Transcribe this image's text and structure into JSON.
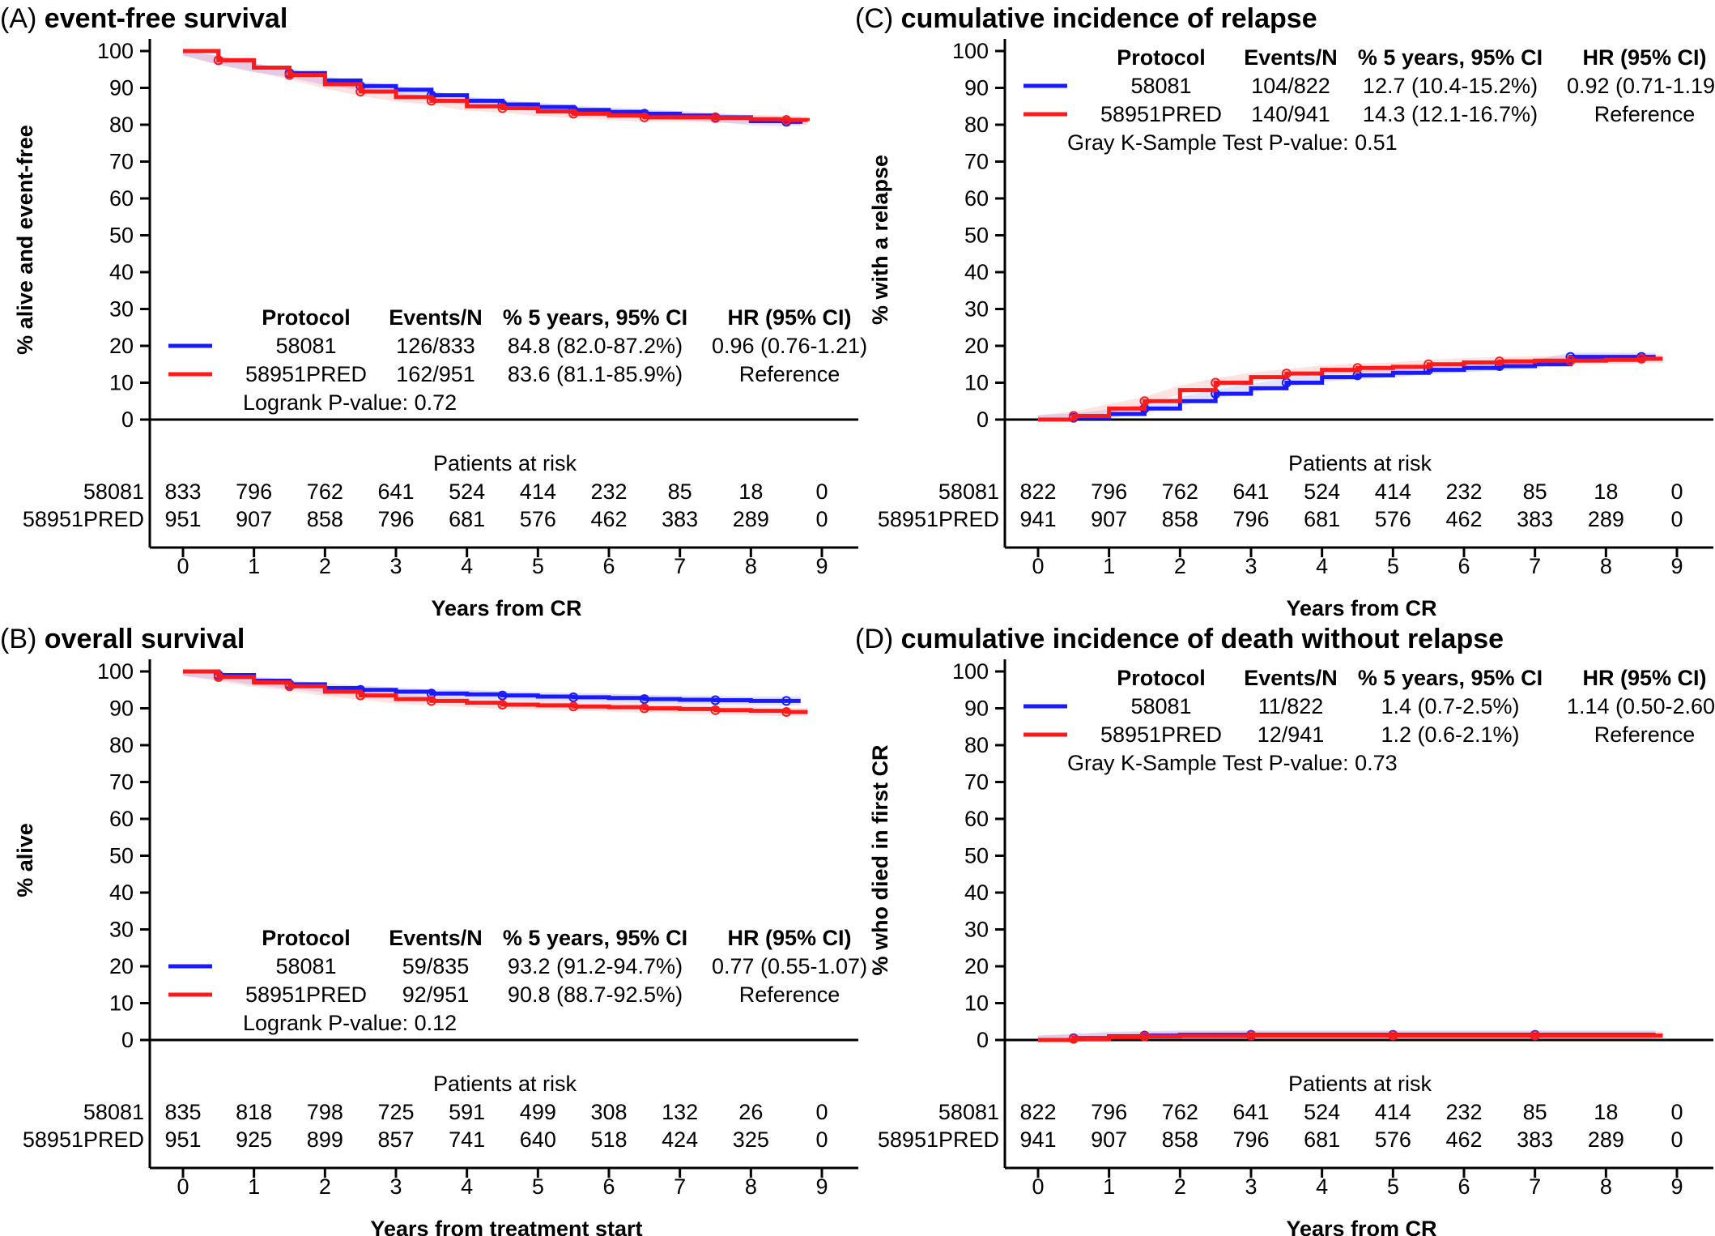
{
  "chart_data": [
    {
      "panel_letter": "(A)",
      "title": "event-free survival",
      "type": "line",
      "ylabel": "% alive and event-free",
      "xlabel": "Years from CR",
      "ylim": [
        0,
        100
      ],
      "xlim": [
        0,
        9
      ],
      "yticks": [
        0,
        10,
        20,
        30,
        40,
        50,
        60,
        70,
        80,
        90,
        100
      ],
      "xticks": [
        0,
        1,
        2,
        3,
        4,
        5,
        6,
        7,
        8,
        9
      ],
      "legend": {
        "headers": [
          "Protocol",
          "Events/N",
          "% 5 years, 95% CI",
          "HR (95% CI)"
        ],
        "placement": "bottom",
        "rows": [
          {
            "protocol": "58081",
            "events": "126/833",
            "pct": "84.8 (82.0-87.2%)",
            "hr": "0.96 (0.76-1.21)",
            "color": "#1a1aff"
          },
          {
            "protocol": "58951PRED",
            "events": "162/951",
            "pct": "83.6 (81.1-85.9%)",
            "hr": "Reference",
            "color": "#ff1a1a"
          }
        ],
        "test": "Logrank P-value: 0.72"
      },
      "series": [
        {
          "name": "58081",
          "color": "#1a1aff",
          "x": [
            0,
            0.5,
            1,
            1.5,
            2,
            2.5,
            3,
            3.5,
            4,
            4.5,
            5,
            5.5,
            6,
            6.5,
            7,
            7.5,
            8,
            8.5,
            8.7
          ],
          "y": [
            100,
            97.5,
            95.5,
            94,
            92,
            90.5,
            89.5,
            88,
            86.5,
            85.5,
            84.8,
            84,
            83.5,
            83,
            82.5,
            82,
            81,
            80.8,
            81
          ]
        },
        {
          "name": "58951PRED",
          "color": "#ff1a1a",
          "x": [
            0,
            0.5,
            1,
            1.5,
            2,
            2.5,
            3,
            3.5,
            4,
            4.5,
            5,
            5.5,
            6,
            6.5,
            7,
            7.5,
            8,
            8.5,
            8.8
          ],
          "y": [
            100,
            97.5,
            95.5,
            93.5,
            91,
            89,
            87.5,
            86.5,
            85,
            84.5,
            83.6,
            83,
            82.5,
            82,
            82,
            81.8,
            81.5,
            81.3,
            81
          ]
        }
      ],
      "risk_table": {
        "title": "Patients at risk",
        "rows": [
          {
            "label": "58081",
            "values": [
              "833",
              "796",
              "762",
              "641",
              "524",
              "414",
              "232",
              "85",
              "18",
              "0"
            ]
          },
          {
            "label": "58951PRED",
            "values": [
              "951",
              "907",
              "858",
              "796",
              "681",
              "576",
              "462",
              "383",
              "289",
              "0"
            ]
          }
        ]
      }
    },
    {
      "panel_letter": "(B)",
      "title": "overall survival",
      "type": "line",
      "ylabel": "% alive",
      "xlabel": "Years from treatment start",
      "ylim": [
        0,
        100
      ],
      "xlim": [
        0,
        9
      ],
      "yticks": [
        0,
        10,
        20,
        30,
        40,
        50,
        60,
        70,
        80,
        90,
        100
      ],
      "xticks": [
        0,
        1,
        2,
        3,
        4,
        5,
        6,
        7,
        8,
        9
      ],
      "legend": {
        "headers": [
          "Protocol",
          "Events/N",
          "% 5 years, 95% CI",
          "HR (95% CI)"
        ],
        "placement": "bottom",
        "rows": [
          {
            "protocol": "58081",
            "events": "59/835",
            "pct": "93.2 (91.2-94.7%)",
            "hr": "0.77 (0.55-1.07)",
            "color": "#1a1aff"
          },
          {
            "protocol": "58951PRED",
            "events": "92/951",
            "pct": "90.8 (88.7-92.5%)",
            "hr": "Reference",
            "color": "#ff1a1a"
          }
        ],
        "test": "Logrank P-value: 0.12"
      },
      "series": [
        {
          "name": "58081",
          "color": "#1a1aff",
          "x": [
            0,
            0.5,
            1,
            1.5,
            2,
            2.5,
            3,
            3.5,
            4,
            4.5,
            5,
            5.5,
            6,
            6.5,
            7,
            7.5,
            8,
            8.5,
            8.7
          ],
          "y": [
            100,
            99,
            97.5,
            96.5,
            95.5,
            95,
            94.5,
            94,
            93.8,
            93.5,
            93.2,
            93,
            92.8,
            92.5,
            92.3,
            92.2,
            92,
            92,
            92
          ]
        },
        {
          "name": "58951PRED",
          "color": "#ff1a1a",
          "x": [
            0,
            0.5,
            1,
            1.5,
            2,
            2.5,
            3,
            3.5,
            4,
            4.5,
            5,
            5.5,
            6,
            6.5,
            7,
            7.5,
            8,
            8.5,
            8.8
          ],
          "y": [
            100,
            98.5,
            97,
            96,
            94.5,
            93.5,
            92.5,
            92,
            91.5,
            91,
            90.8,
            90.5,
            90.3,
            90,
            89.8,
            89.5,
            89.3,
            89,
            89
          ]
        }
      ],
      "risk_table": {
        "title": "Patients at risk",
        "rows": [
          {
            "label": "58081",
            "values": [
              "835",
              "818",
              "798",
              "725",
              "591",
              "499",
              "308",
              "132",
              "26",
              "0"
            ]
          },
          {
            "label": "58951PRED",
            "values": [
              "951",
              "925",
              "899",
              "857",
              "741",
              "640",
              "518",
              "424",
              "325",
              "0"
            ]
          }
        ]
      }
    },
    {
      "panel_letter": "(C)",
      "title": "cumulative incidence of relapse",
      "type": "line",
      "ylabel": "% with a relapse",
      "xlabel": "Years from CR",
      "ylim": [
        0,
        100
      ],
      "xlim": [
        0,
        9
      ],
      "yticks": [
        0,
        10,
        20,
        30,
        40,
        50,
        60,
        70,
        80,
        90,
        100
      ],
      "xticks": [
        0,
        1,
        2,
        3,
        4,
        5,
        6,
        7,
        8,
        9
      ],
      "legend": {
        "headers": [
          "Protocol",
          "Events/N",
          "% 5 years, 95% CI",
          "HR (95% CI)"
        ],
        "placement": "top",
        "rows": [
          {
            "protocol": "58081",
            "events": "104/822",
            "pct": "12.7 (10.4-15.2%)",
            "hr": "0.92 (0.71-1.19)",
            "color": "#1a1aff"
          },
          {
            "protocol": "58951PRED",
            "events": "140/941",
            "pct": "14.3 (12.1-16.7%)",
            "hr": "Reference",
            "color": "#ff1a1a"
          }
        ],
        "test": "Gray K-Sample Test P-value: 0.51"
      },
      "series": [
        {
          "name": "58081",
          "color": "#1a1aff",
          "x": [
            0,
            0.5,
            1,
            1.5,
            2,
            2.5,
            3,
            3.5,
            4,
            4.5,
            5,
            5.5,
            6,
            6.5,
            7,
            7.5,
            8,
            8.5,
            8.7
          ],
          "y": [
            0,
            0.5,
            1.5,
            3,
            5,
            7,
            8.5,
            10,
            11.5,
            12,
            12.7,
            13.5,
            14,
            14.5,
            15,
            17,
            17,
            17,
            17
          ]
        },
        {
          "name": "58951PRED",
          "color": "#ff1a1a",
          "x": [
            0,
            0.5,
            1,
            1.5,
            2,
            2.5,
            3,
            3.5,
            4,
            4.5,
            5,
            5.5,
            6,
            6.5,
            7,
            7.5,
            8,
            8.5,
            8.8
          ],
          "y": [
            0,
            1,
            3,
            5,
            8,
            10,
            11.5,
            12.5,
            13.5,
            14,
            14.3,
            15,
            15.5,
            15.8,
            16,
            16,
            16.2,
            16.5,
            16.5
          ]
        }
      ],
      "risk_table": {
        "title": "Patients at risk",
        "rows": [
          {
            "label": "58081",
            "values": [
              "822",
              "796",
              "762",
              "641",
              "524",
              "414",
              "232",
              "85",
              "18",
              "0"
            ]
          },
          {
            "label": "58951PRED",
            "values": [
              "941",
              "907",
              "858",
              "796",
              "681",
              "576",
              "462",
              "383",
              "289",
              "0"
            ]
          }
        ]
      }
    },
    {
      "panel_letter": "(D)",
      "title": "cumulative incidence of death without relapse",
      "type": "line",
      "ylabel": "% who died in first CR",
      "xlabel": "Years from CR",
      "ylim": [
        0,
        100
      ],
      "xlim": [
        0,
        9
      ],
      "yticks": [
        0,
        10,
        20,
        30,
        40,
        50,
        60,
        70,
        80,
        90,
        100
      ],
      "xticks": [
        0,
        1,
        2,
        3,
        4,
        5,
        6,
        7,
        8,
        9
      ],
      "legend": {
        "headers": [
          "Protocol",
          "Events/N",
          "% 5 years, 95% CI",
          "HR (95% CI)"
        ],
        "placement": "top",
        "rows": [
          {
            "protocol": "58081",
            "events": "11/822",
            "pct": "1.4 (0.7-2.5%)",
            "hr": "1.14 (0.50-2.60)",
            "color": "#1a1aff"
          },
          {
            "protocol": "58951PRED",
            "events": "12/941",
            "pct": "1.2 (0.6-2.1%)",
            "hr": "Reference",
            "color": "#ff1a1a"
          }
        ],
        "test": "Gray K-Sample Test P-value: 0.73"
      },
      "series": [
        {
          "name": "58081",
          "color": "#1a1aff",
          "x": [
            0,
            0.5,
            1,
            1.5,
            2,
            3,
            4,
            5,
            6,
            7,
            8,
            8.7
          ],
          "y": [
            0,
            0.5,
            1,
            1.2,
            1.4,
            1.4,
            1.4,
            1.4,
            1.4,
            1.4,
            1.4,
            1.4
          ]
        },
        {
          "name": "58951PRED",
          "color": "#ff1a1a",
          "x": [
            0,
            0.5,
            1,
            1.5,
            2,
            3,
            4,
            5,
            6,
            7,
            8,
            8.8
          ],
          "y": [
            0,
            0.3,
            0.8,
            1.0,
            1.1,
            1.2,
            1.2,
            1.2,
            1.2,
            1.2,
            1.2,
            1.2
          ]
        }
      ],
      "risk_table": {
        "title": "Patients at risk",
        "rows": [
          {
            "label": "58081",
            "values": [
              "822",
              "796",
              "762",
              "641",
              "524",
              "414",
              "232",
              "85",
              "18",
              "0"
            ]
          },
          {
            "label": "58951PRED",
            "values": [
              "941",
              "907",
              "858",
              "796",
              "681",
              "576",
              "462",
              "383",
              "289",
              "0"
            ]
          }
        ]
      }
    }
  ]
}
